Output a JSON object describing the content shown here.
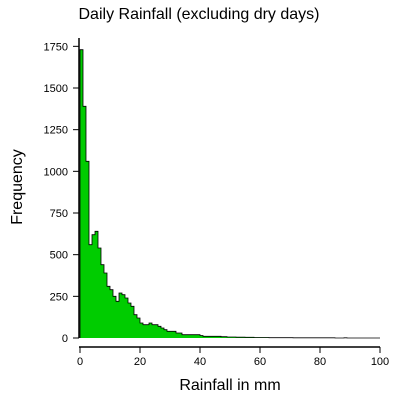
{
  "chart_data": {
    "type": "bar",
    "title": "Daily Rainfall (excluding dry days)",
    "xlabel": "Rainfall in mm",
    "ylabel": "Frequency",
    "xlim": [
      0,
      100
    ],
    "ylim": [
      0,
      1800
    ],
    "x_ticks": [
      0,
      20,
      40,
      60,
      80,
      100
    ],
    "y_ticks": [
      0,
      250,
      500,
      750,
      1000,
      1250,
      1500,
      1750
    ],
    "bin_width": 1,
    "bar_color": "#00cc00",
    "outline_color": "#000000",
    "bins_start": [
      0,
      1,
      2,
      3,
      4,
      5,
      6,
      7,
      8,
      9,
      10,
      11,
      12,
      13,
      14,
      15,
      16,
      17,
      18,
      19,
      20,
      21,
      22,
      23,
      24,
      25,
      26,
      27,
      28,
      29,
      30,
      31,
      32,
      33,
      34,
      35,
      36,
      37,
      38,
      39,
      40,
      41,
      42,
      43,
      44,
      45,
      46,
      47,
      48,
      49,
      50,
      51,
      52,
      53,
      54,
      55,
      56,
      57,
      58,
      59,
      60,
      61,
      62,
      63,
      64,
      65,
      66,
      67,
      68,
      69,
      70,
      71,
      72,
      73,
      74,
      75,
      76,
      77,
      78,
      79,
      80,
      81,
      82,
      83,
      84,
      85,
      86,
      87,
      88,
      89,
      90,
      91,
      92,
      93,
      94,
      95,
      96,
      97,
      98,
      99
    ],
    "values": [
      1730,
      1390,
      1060,
      560,
      620,
      640,
      540,
      440,
      390,
      310,
      290,
      250,
      220,
      270,
      260,
      240,
      210,
      190,
      140,
      120,
      90,
      80,
      80,
      90,
      80,
      80,
      70,
      60,
      50,
      40,
      40,
      40,
      30,
      30,
      20,
      20,
      20,
      20,
      20,
      20,
      15,
      10,
      10,
      10,
      10,
      10,
      10,
      8,
      8,
      6,
      6,
      6,
      5,
      5,
      5,
      4,
      4,
      4,
      3,
      3,
      3,
      3,
      3,
      2,
      2,
      2,
      2,
      2,
      2,
      2,
      2,
      1,
      1,
      1,
      1,
      1,
      1,
      1,
      1,
      1,
      1,
      1,
      1,
      1,
      1,
      0,
      0,
      0,
      1,
      0,
      0,
      0,
      0,
      0,
      0,
      0,
      0,
      0,
      0,
      0
    ]
  }
}
